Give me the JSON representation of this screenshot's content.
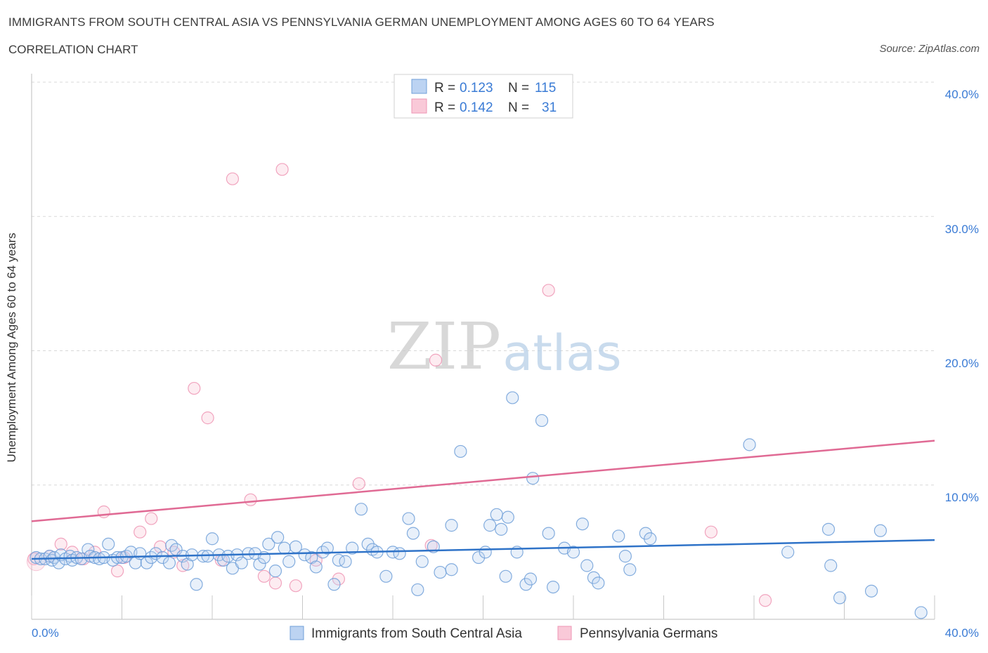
{
  "title": "IMMIGRANTS FROM SOUTH CENTRAL ASIA VS PENNSYLVANIA GERMAN UNEMPLOYMENT AMONG AGES 60 TO 64 YEARS",
  "subtitle": "CORRELATION CHART",
  "source": "Source: ZipAtlas.com",
  "watermark": {
    "zip": "ZIP",
    "atlas": "atlas"
  },
  "colors": {
    "blue": "#5b9bd5",
    "blue_line": "#2f73c8",
    "pink": "#f08cab",
    "pink_line": "#e06a94",
    "axis_text": "#3a7bd5",
    "grid": "#d8d8d8"
  },
  "legend": {
    "rows": [
      {
        "r_label": "R =",
        "r_value": "0.123",
        "n_label": "N =",
        "n_value": "115"
      },
      {
        "r_label": "R =",
        "r_value": "0.142",
        "n_label": "N =",
        "n_value": "31"
      }
    ]
  },
  "chart_data": {
    "type": "scatter",
    "ylabel": "Unemployment Among Ages 60 to 64 years",
    "xlim": [
      0,
      40
    ],
    "ylim": [
      0,
      40
    ],
    "x_tick_labels": [
      "0.0%",
      "40.0%"
    ],
    "y_tick_labels": [
      "10.0%",
      "20.0%",
      "30.0%",
      "40.0%"
    ],
    "y_ticks": [
      10,
      20,
      30,
      40
    ],
    "grid": true,
    "legend_position": "top-center",
    "series": [
      {
        "name": "Immigrants from South Central Asia",
        "color": "#5b9bd5",
        "trend": [
          [
            0,
            4.5
          ],
          [
            40,
            5.9
          ]
        ],
        "points": [
          [
            0.2,
            4.6
          ],
          [
            0.4,
            4.5
          ],
          [
            0.6,
            4.5
          ],
          [
            0.8,
            4.7
          ],
          [
            0.9,
            4.4
          ],
          [
            1.0,
            4.6
          ],
          [
            1.2,
            4.2
          ],
          [
            1.3,
            4.8
          ],
          [
            1.5,
            4.5
          ],
          [
            1.7,
            4.7
          ],
          [
            1.8,
            4.4
          ],
          [
            2.0,
            4.6
          ],
          [
            2.2,
            4.5
          ],
          [
            2.5,
            5.2
          ],
          [
            2.6,
            4.7
          ],
          [
            2.8,
            4.6
          ],
          [
            3.0,
            4.5
          ],
          [
            3.2,
            4.6
          ],
          [
            3.4,
            5.6
          ],
          [
            3.6,
            4.4
          ],
          [
            3.8,
            4.6
          ],
          [
            4.0,
            4.6
          ],
          [
            4.2,
            4.7
          ],
          [
            4.4,
            5.0
          ],
          [
            4.6,
            4.2
          ],
          [
            4.8,
            4.9
          ],
          [
            5.1,
            4.2
          ],
          [
            5.3,
            4.6
          ],
          [
            5.5,
            4.9
          ],
          [
            5.8,
            4.6
          ],
          [
            6.1,
            4.2
          ],
          [
            6.2,
            5.5
          ],
          [
            6.4,
            5.2
          ],
          [
            6.7,
            4.7
          ],
          [
            6.9,
            4.1
          ],
          [
            7.1,
            4.8
          ],
          [
            7.3,
            2.6
          ],
          [
            7.6,
            4.7
          ],
          [
            7.8,
            4.7
          ],
          [
            8.0,
            6.0
          ],
          [
            8.3,
            4.8
          ],
          [
            8.5,
            4.4
          ],
          [
            8.7,
            4.7
          ],
          [
            8.9,
            3.8
          ],
          [
            9.1,
            4.8
          ],
          [
            9.3,
            4.2
          ],
          [
            9.6,
            4.9
          ],
          [
            9.9,
            4.9
          ],
          [
            10.1,
            4.1
          ],
          [
            10.3,
            4.6
          ],
          [
            10.5,
            5.6
          ],
          [
            10.8,
            3.6
          ],
          [
            10.9,
            6.1
          ],
          [
            11.2,
            5.3
          ],
          [
            11.4,
            4.3
          ],
          [
            11.7,
            5.4
          ],
          [
            12.1,
            4.8
          ],
          [
            12.4,
            4.6
          ],
          [
            12.6,
            3.9
          ],
          [
            12.9,
            5.0
          ],
          [
            13.1,
            5.3
          ],
          [
            13.4,
            2.6
          ],
          [
            13.6,
            4.4
          ],
          [
            13.9,
            4.3
          ],
          [
            14.2,
            5.3
          ],
          [
            14.6,
            8.2
          ],
          [
            14.9,
            5.6
          ],
          [
            15.1,
            5.2
          ],
          [
            15.3,
            5.0
          ],
          [
            15.7,
            3.2
          ],
          [
            16.0,
            5.0
          ],
          [
            16.3,
            4.9
          ],
          [
            16.7,
            7.5
          ],
          [
            16.9,
            6.4
          ],
          [
            17.1,
            2.2
          ],
          [
            17.3,
            4.3
          ],
          [
            17.8,
            5.4
          ],
          [
            18.1,
            3.5
          ],
          [
            18.6,
            7.0
          ],
          [
            18.6,
            3.7
          ],
          [
            19.0,
            12.5
          ],
          [
            19.8,
            4.6
          ],
          [
            20.1,
            5.0
          ],
          [
            20.3,
            7.0
          ],
          [
            20.6,
            7.8
          ],
          [
            20.8,
            6.7
          ],
          [
            21.0,
            3.2
          ],
          [
            21.1,
            7.6
          ],
          [
            21.3,
            16.5
          ],
          [
            21.5,
            5.0
          ],
          [
            21.9,
            2.6
          ],
          [
            22.1,
            3.0
          ],
          [
            22.2,
            10.5
          ],
          [
            22.6,
            14.8
          ],
          [
            22.9,
            6.4
          ],
          [
            23.1,
            2.4
          ],
          [
            23.6,
            5.3
          ],
          [
            24.0,
            5.0
          ],
          [
            24.4,
            7.1
          ],
          [
            24.6,
            4.0
          ],
          [
            24.9,
            3.1
          ],
          [
            25.1,
            2.7
          ],
          [
            26.0,
            6.2
          ],
          [
            26.3,
            4.7
          ],
          [
            26.5,
            3.7
          ],
          [
            27.2,
            6.4
          ],
          [
            27.4,
            6.0
          ],
          [
            31.8,
            13.0
          ],
          [
            33.5,
            5.0
          ],
          [
            35.3,
            6.7
          ],
          [
            35.4,
            4.0
          ],
          [
            35.8,
            1.6
          ],
          [
            37.2,
            2.1
          ],
          [
            37.6,
            6.6
          ],
          [
            39.4,
            0.5
          ]
        ]
      },
      {
        "name": "Pennsylvania Germans",
        "color": "#f08cab",
        "trend": [
          [
            0,
            7.3
          ],
          [
            40,
            13.3
          ]
        ],
        "points": [
          [
            0.1,
            4.5
          ],
          [
            0.8,
            4.7
          ],
          [
            1.3,
            5.6
          ],
          [
            1.8,
            5.0
          ],
          [
            2.3,
            4.5
          ],
          [
            2.8,
            5.0
          ],
          [
            3.2,
            8.0
          ],
          [
            3.8,
            3.6
          ],
          [
            4.1,
            4.6
          ],
          [
            4.8,
            6.5
          ],
          [
            5.3,
            7.5
          ],
          [
            5.7,
            5.4
          ],
          [
            6.3,
            5.0
          ],
          [
            6.7,
            4.0
          ],
          [
            7.2,
            17.2
          ],
          [
            7.8,
            15.0
          ],
          [
            8.4,
            4.4
          ],
          [
            8.9,
            32.8
          ],
          [
            9.7,
            8.9
          ],
          [
            10.3,
            3.2
          ],
          [
            10.8,
            2.7
          ],
          [
            11.1,
            33.5
          ],
          [
            11.7,
            2.5
          ],
          [
            12.6,
            4.4
          ],
          [
            13.6,
            3.0
          ],
          [
            14.5,
            10.1
          ],
          [
            17.7,
            5.5
          ],
          [
            17.9,
            19.3
          ],
          [
            22.9,
            24.5
          ],
          [
            30.1,
            6.5
          ],
          [
            32.5,
            1.4
          ]
        ]
      }
    ]
  }
}
